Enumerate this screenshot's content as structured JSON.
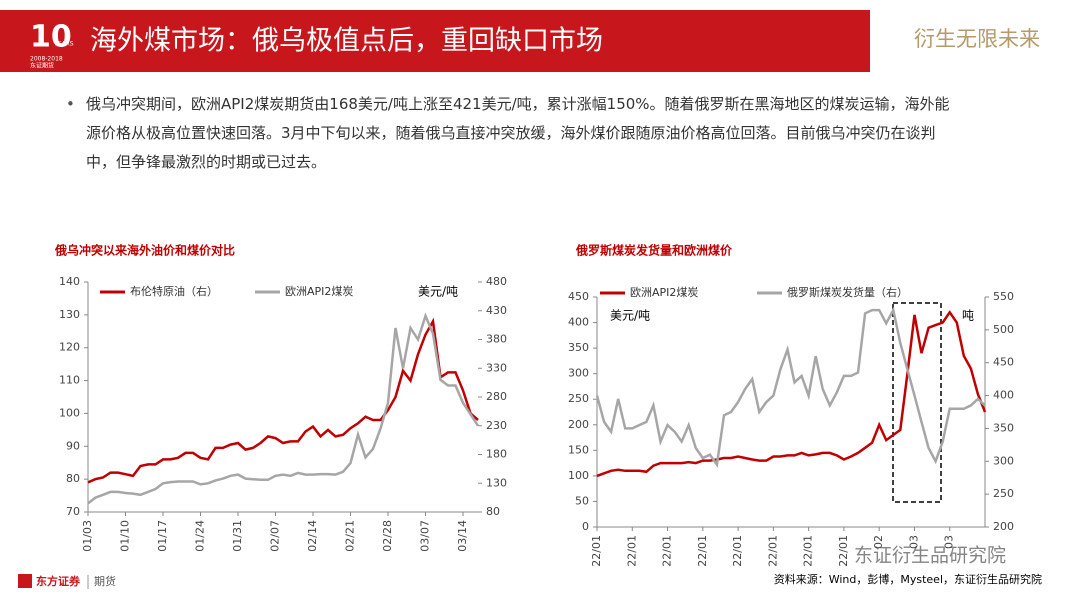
{
  "header": {
    "logo": "10",
    "logo_sub": "YEARS",
    "logo_years": "2008-2018",
    "logo_brand": "东证期货",
    "title": "海外煤市场：俄乌极值点后，重回缺口市场",
    "slogan": "衍生无限未来"
  },
  "bullets": [
    "俄乌冲突期间，欧洲API2煤炭期货由168美元/吨上涨至421美元/吨，累计涨幅150%。随着俄罗斯在黑海地区的煤炭运输，海外能源价格从极高位置快速回落。3月中下旬以来，随着俄乌直接冲突放缓，海外煤价跟随原油价格高位回落。目前俄乌冲突仍在谈判中，但争锋最激烈的时期或已过去。"
  ],
  "chart_data": [
    {
      "type": "line",
      "title": "俄乌冲突以来海外油价和煤价对比",
      "annotations": [
        "美元/吨"
      ],
      "categories": [
        "01/03",
        null,
        null,
        null,
        null,
        "01/10",
        null,
        null,
        null,
        null,
        "01/17",
        null,
        null,
        null,
        null,
        "01/24",
        null,
        null,
        null,
        null,
        "01/31",
        null,
        null,
        null,
        null,
        "02/07",
        null,
        null,
        null,
        null,
        "02/14",
        null,
        null,
        null,
        null,
        "02/21",
        null,
        null,
        null,
        null,
        "02/28",
        null,
        null,
        null,
        null,
        "03/07",
        null,
        null,
        null,
        null,
        "03/14",
        null,
        null
      ],
      "series": [
        {
          "name": "布伦特原油（右）",
          "color": "#c00000",
          "values": [
            79,
            80,
            80.5,
            82,
            82,
            81.5,
            81,
            84,
            84.5,
            84.5,
            86,
            86,
            86.5,
            88,
            88,
            86.5,
            86,
            89.5,
            89.5,
            90.5,
            91,
            89,
            89.5,
            91,
            93,
            92.5,
            91,
            91.5,
            91.5,
            94.5,
            96,
            93,
            95,
            93,
            93.5,
            95.5,
            97,
            99,
            98,
            98,
            101,
            105,
            113,
            110,
            118,
            124,
            128,
            111,
            112.5,
            112.5,
            107,
            100,
            98
          ]
        },
        {
          "name": "欧洲API2煤炭",
          "color": "#a6a6a6",
          "axis": "y2",
          "values": [
            95,
            105,
            110,
            115,
            115,
            113,
            112,
            110,
            115,
            120,
            130,
            132,
            133,
            133,
            133,
            128,
            130,
            135,
            138,
            143,
            145,
            138,
            137,
            136,
            136,
            143,
            145,
            143,
            148,
            145,
            145,
            146,
            146,
            145,
            150,
            165,
            215,
            175,
            190,
            225,
            270,
            400,
            330,
            400,
            380,
            421,
            390,
            310,
            300,
            300,
            270,
            250,
            230
          ]
        }
      ],
      "ylim": [
        70,
        140
      ],
      "yticks": [
        70,
        80,
        90,
        100,
        110,
        120,
        130,
        140
      ],
      "y2lim": [
        80,
        480
      ],
      "y2ticks": [
        80,
        130,
        180,
        230,
        280,
        330,
        380,
        430,
        480
      ]
    },
    {
      "type": "line",
      "title": "俄罗斯煤炭发货量和欧洲煤价",
      "annotations": [
        "美元/吨",
        "吨"
      ],
      "categories": [
        "22/01",
        null,
        null,
        null,
        null,
        "22/01",
        null,
        null,
        null,
        null,
        "22/01",
        null,
        null,
        null,
        null,
        "22/01",
        null,
        null,
        null,
        null,
        "22/01",
        null,
        null,
        null,
        null,
        "22/01",
        null,
        null,
        null,
        null,
        "22/01",
        null,
        null,
        null,
        null,
        "22/01",
        null,
        null,
        null,
        null,
        "02",
        null,
        null,
        null,
        null,
        "03",
        null,
        null,
        null,
        null,
        "03",
        null,
        null,
        null,
        null,
        null
      ],
      "series": [
        {
          "name": "欧洲API2煤炭",
          "color": "#c00000",
          "values": [
            100,
            105,
            110,
            112,
            110,
            110,
            110,
            108,
            120,
            125,
            125,
            125,
            125,
            127,
            125,
            130,
            130,
            132,
            135,
            135,
            138,
            135,
            132,
            130,
            130,
            138,
            138,
            140,
            140,
            145,
            140,
            142,
            145,
            145,
            140,
            132,
            138,
            145,
            155,
            165,
            200,
            170,
            180,
            190,
            300,
            415,
            340,
            390,
            395,
            400,
            420,
            400,
            335,
            310,
            260,
            225
          ]
        },
        {
          "name": "俄罗斯煤炭发货量（右）",
          "color": "#a6a6a6",
          "axis": "y2",
          "values": [
            400,
            360,
            345,
            395,
            350,
            350,
            355,
            360,
            385,
            330,
            355,
            345,
            330,
            355,
            320,
            305,
            310,
            295,
            370,
            375,
            390,
            410,
            425,
            375,
            390,
            400,
            440,
            470,
            420,
            430,
            400,
            460,
            410,
            385,
            405,
            430,
            430,
            435,
            525,
            530,
            530,
            510,
            530,
            480,
            440,
            400,
            360,
            320,
            300,
            330,
            380,
            380,
            380,
            385,
            395,
            385
          ]
        }
      ],
      "ylim": [
        0,
        450
      ],
      "yticks": [
        0,
        50,
        100,
        150,
        200,
        250,
        300,
        350,
        400,
        450
      ],
      "y2lim": [
        200,
        550
      ],
      "y2ticks": [
        200,
        250,
        300,
        350,
        400,
        450,
        500,
        550
      ]
    }
  ],
  "source": "资料来源：Wind，彭博，Mysteel，东证衍生品研究院",
  "watermark": "东证衍生品研究院",
  "footer": {
    "brand": "东方证券",
    "unit": "期货"
  }
}
